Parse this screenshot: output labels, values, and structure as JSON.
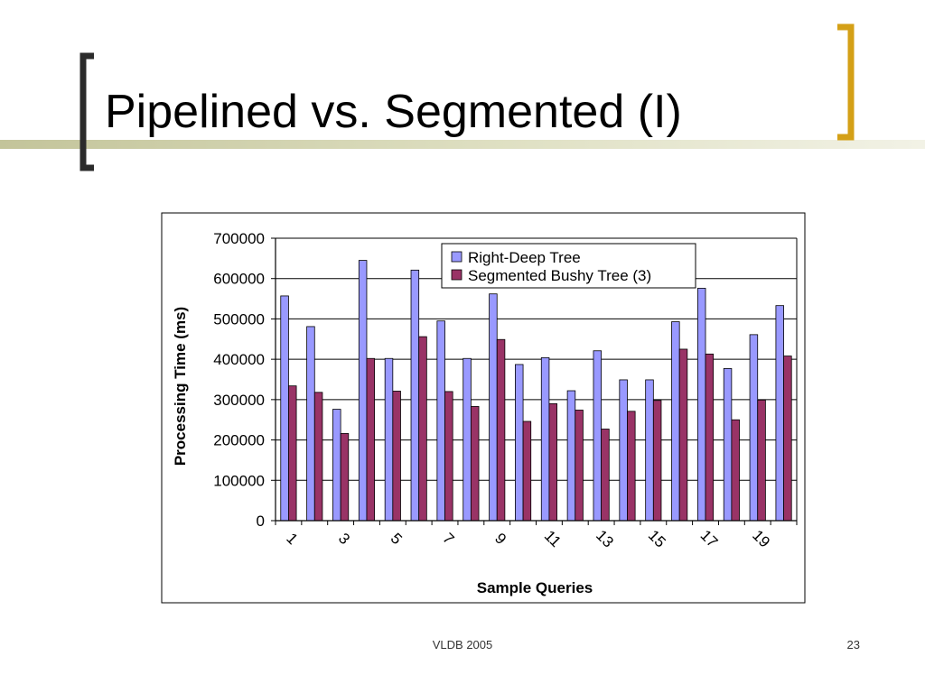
{
  "slide": {
    "title": "Pipelined vs. Segmented (I)",
    "footer": "VLDB 2005",
    "page_number": "23"
  },
  "colors": {
    "accent_gold": "#d4a017",
    "bracket_dark": "#2b2b2b",
    "right_deep": "#9999ff",
    "segmented_bushy": "#993366",
    "plot_bg": "#ffffff",
    "gridline": "#000000"
  },
  "chart_data": {
    "type": "bar",
    "xlabel": "Sample Queries",
    "ylabel": "Processing Time (ms)",
    "ylim": [
      0,
      700000
    ],
    "yticks": [
      "0",
      "100000",
      "200000",
      "300000",
      "400000",
      "500000",
      "600000",
      "700000"
    ],
    "categories": [
      "1",
      "2",
      "3",
      "4",
      "5",
      "6",
      "7",
      "8",
      "9",
      "10",
      "11",
      "12",
      "13",
      "14",
      "15",
      "16",
      "17",
      "18",
      "19",
      "20"
    ],
    "xtick_labels": [
      "1",
      "3",
      "5",
      "7",
      "9",
      "11",
      "13",
      "15",
      "17",
      "19"
    ],
    "legend_position": "top-right",
    "grid": true,
    "series": [
      {
        "name": "Right-Deep Tree",
        "values": [
          557000,
          481000,
          276000,
          645000,
          402000,
          621000,
          495000,
          402000,
          562000,
          387000,
          404000,
          322000,
          421000,
          349000,
          349000,
          493000,
          576000,
          377000,
          461000,
          533000
        ]
      },
      {
        "name": "Segmented Bushy Tree (3)",
        "values": [
          334000,
          318000,
          216000,
          402000,
          321000,
          456000,
          320000,
          283000,
          449000,
          246000,
          290000,
          274000,
          227000,
          271000,
          298000,
          425000,
          413000,
          250000,
          299000,
          408000
        ]
      }
    ]
  }
}
